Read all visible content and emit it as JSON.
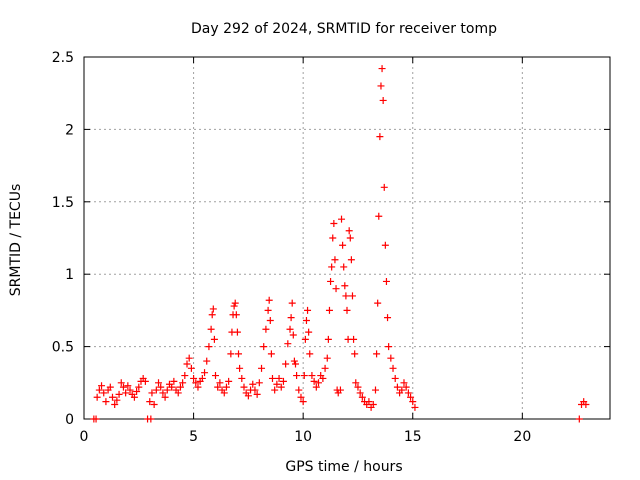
{
  "chart_data": {
    "type": "scatter",
    "title": "Day 292 of 2024, SRMTID for receiver tomp",
    "xlabel": "GPS time / hours",
    "ylabel": "SRMTID / TECUs",
    "xlim": [
      0,
      24
    ],
    "ylim": [
      0,
      2.5
    ],
    "xticks": [
      0,
      5,
      10,
      15,
      20
    ],
    "xtick_labels": [
      "0",
      "5",
      "10",
      "15",
      "20"
    ],
    "yticks": [
      0,
      0.5,
      1,
      1.5,
      2,
      2.5
    ],
    "ytick_labels": [
      "0",
      "0.5",
      "1",
      "1.5",
      "2",
      "2.5"
    ],
    "grid": true,
    "marker": "+",
    "series": [
      {
        "name": "SRMTID",
        "color": "#ff0000",
        "points": [
          [
            0.45,
            0.0
          ],
          [
            0.55,
            0.0
          ],
          [
            0.6,
            0.15
          ],
          [
            0.7,
            0.2
          ],
          [
            0.8,
            0.23
          ],
          [
            0.9,
            0.18
          ],
          [
            1.0,
            0.12
          ],
          [
            1.1,
            0.2
          ],
          [
            1.2,
            0.22
          ],
          [
            1.3,
            0.15
          ],
          [
            1.4,
            0.1
          ],
          [
            1.5,
            0.13
          ],
          [
            1.6,
            0.17
          ],
          [
            1.7,
            0.25
          ],
          [
            1.8,
            0.22
          ],
          [
            1.9,
            0.18
          ],
          [
            2.0,
            0.23
          ],
          [
            2.1,
            0.2
          ],
          [
            2.2,
            0.17
          ],
          [
            2.3,
            0.15
          ],
          [
            2.4,
            0.19
          ],
          [
            2.5,
            0.22
          ],
          [
            2.6,
            0.26
          ],
          [
            2.7,
            0.28
          ],
          [
            2.8,
            0.26
          ],
          [
            2.9,
            0.0
          ],
          [
            3.0,
            0.12
          ],
          [
            3.05,
            0.0
          ],
          [
            3.1,
            0.18
          ],
          [
            3.2,
            0.1
          ],
          [
            3.3,
            0.2
          ],
          [
            3.4,
            0.25
          ],
          [
            3.5,
            0.22
          ],
          [
            3.6,
            0.18
          ],
          [
            3.7,
            0.15
          ],
          [
            3.8,
            0.2
          ],
          [
            3.9,
            0.24
          ],
          [
            4.0,
            0.22
          ],
          [
            4.1,
            0.26
          ],
          [
            4.2,
            0.2
          ],
          [
            4.3,
            0.18
          ],
          [
            4.4,
            0.22
          ],
          [
            4.5,
            0.25
          ],
          [
            4.6,
            0.3
          ],
          [
            4.7,
            0.38
          ],
          [
            4.8,
            0.42
          ],
          [
            4.9,
            0.35
          ],
          [
            5.0,
            0.28
          ],
          [
            5.1,
            0.25
          ],
          [
            5.2,
            0.22
          ],
          [
            5.3,
            0.26
          ],
          [
            5.4,
            0.28
          ],
          [
            5.5,
            0.32
          ],
          [
            5.6,
            0.4
          ],
          [
            5.7,
            0.5
          ],
          [
            5.8,
            0.62
          ],
          [
            5.85,
            0.72
          ],
          [
            5.9,
            0.76
          ],
          [
            5.95,
            0.55
          ],
          [
            6.0,
            0.3
          ],
          [
            6.1,
            0.22
          ],
          [
            6.2,
            0.25
          ],
          [
            6.3,
            0.2
          ],
          [
            6.4,
            0.18
          ],
          [
            6.5,
            0.22
          ],
          [
            6.6,
            0.26
          ],
          [
            6.7,
            0.45
          ],
          [
            6.75,
            0.6
          ],
          [
            6.8,
            0.72
          ],
          [
            6.85,
            0.78
          ],
          [
            6.9,
            0.8
          ],
          [
            6.95,
            0.72
          ],
          [
            7.0,
            0.6
          ],
          [
            7.05,
            0.45
          ],
          [
            7.1,
            0.35
          ],
          [
            7.2,
            0.28
          ],
          [
            7.3,
            0.22
          ],
          [
            7.4,
            0.18
          ],
          [
            7.5,
            0.16
          ],
          [
            7.6,
            0.2
          ],
          [
            7.7,
            0.24
          ],
          [
            7.8,
            0.2
          ],
          [
            7.9,
            0.17
          ],
          [
            8.0,
            0.25
          ],
          [
            8.1,
            0.35
          ],
          [
            8.2,
            0.5
          ],
          [
            8.3,
            0.62
          ],
          [
            8.4,
            0.75
          ],
          [
            8.45,
            0.82
          ],
          [
            8.5,
            0.68
          ],
          [
            8.55,
            0.45
          ],
          [
            8.6,
            0.28
          ],
          [
            8.7,
            0.2
          ],
          [
            8.8,
            0.24
          ],
          [
            8.9,
            0.28
          ],
          [
            9.0,
            0.22
          ],
          [
            9.1,
            0.26
          ],
          [
            9.2,
            0.38
          ],
          [
            9.3,
            0.52
          ],
          [
            9.4,
            0.62
          ],
          [
            9.45,
            0.7
          ],
          [
            9.5,
            0.8
          ],
          [
            9.55,
            0.58
          ],
          [
            9.6,
            0.4
          ],
          [
            9.65,
            0.38
          ],
          [
            9.7,
            0.3
          ],
          [
            9.8,
            0.2
          ],
          [
            9.9,
            0.15
          ],
          [
            10.0,
            0.12
          ],
          [
            10.05,
            0.3
          ],
          [
            10.1,
            0.55
          ],
          [
            10.15,
            0.68
          ],
          [
            10.2,
            0.75
          ],
          [
            10.25,
            0.6
          ],
          [
            10.3,
            0.45
          ],
          [
            10.4,
            0.3
          ],
          [
            10.5,
            0.26
          ],
          [
            10.6,
            0.22
          ],
          [
            10.7,
            0.25
          ],
          [
            10.8,
            0.3
          ],
          [
            10.9,
            0.28
          ],
          [
            11.0,
            0.35
          ],
          [
            11.1,
            0.42
          ],
          [
            11.15,
            0.55
          ],
          [
            11.2,
            0.75
          ],
          [
            11.25,
            0.95
          ],
          [
            11.3,
            1.05
          ],
          [
            11.35,
            1.25
          ],
          [
            11.4,
            1.35
          ],
          [
            11.45,
            1.1
          ],
          [
            11.5,
            0.9
          ],
          [
            11.55,
            0.2
          ],
          [
            11.6,
            0.18
          ],
          [
            11.7,
            0.2
          ],
          [
            11.75,
            1.38
          ],
          [
            11.8,
            1.2
          ],
          [
            11.85,
            1.05
          ],
          [
            11.9,
            0.92
          ],
          [
            11.95,
            0.85
          ],
          [
            12.0,
            0.75
          ],
          [
            12.05,
            0.55
          ],
          [
            12.1,
            1.3
          ],
          [
            12.15,
            1.25
          ],
          [
            12.2,
            1.1
          ],
          [
            12.25,
            0.85
          ],
          [
            12.3,
            0.55
          ],
          [
            12.35,
            0.45
          ],
          [
            12.4,
            0.25
          ],
          [
            12.5,
            0.22
          ],
          [
            12.6,
            0.18
          ],
          [
            12.7,
            0.15
          ],
          [
            12.8,
            0.12
          ],
          [
            12.9,
            0.1
          ],
          [
            13.0,
            0.12
          ],
          [
            13.1,
            0.08
          ],
          [
            13.2,
            0.1
          ],
          [
            13.3,
            0.2
          ],
          [
            13.35,
            0.45
          ],
          [
            13.4,
            0.8
          ],
          [
            13.45,
            1.4
          ],
          [
            13.5,
            1.95
          ],
          [
            13.55,
            2.3
          ],
          [
            13.6,
            2.42
          ],
          [
            13.65,
            2.2
          ],
          [
            13.7,
            1.6
          ],
          [
            13.75,
            1.2
          ],
          [
            13.8,
            0.95
          ],
          [
            13.85,
            0.7
          ],
          [
            13.9,
            0.5
          ],
          [
            14.0,
            0.42
          ],
          [
            14.1,
            0.35
          ],
          [
            14.2,
            0.28
          ],
          [
            14.3,
            0.22
          ],
          [
            14.4,
            0.18
          ],
          [
            14.5,
            0.2
          ],
          [
            14.6,
            0.25
          ],
          [
            14.7,
            0.22
          ],
          [
            14.8,
            0.18
          ],
          [
            14.9,
            0.15
          ],
          [
            15.0,
            0.12
          ],
          [
            15.1,
            0.08
          ],
          [
            22.6,
            0.0
          ],
          [
            22.7,
            0.1
          ],
          [
            22.8,
            0.12
          ],
          [
            22.9,
            0.1
          ]
        ]
      }
    ]
  }
}
